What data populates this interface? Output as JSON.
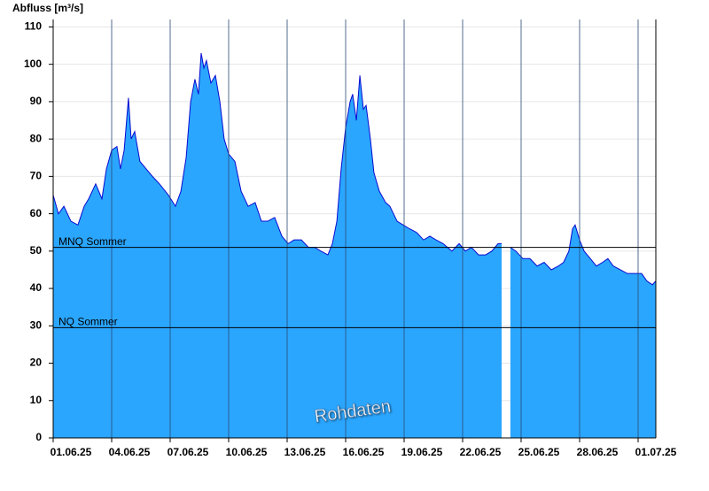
{
  "chart_data": {
    "type": "area",
    "y_label": "Abfluss [m³/s]",
    "annotation": "Rohdaten",
    "color": "#2aa6ff",
    "line_color": "#0a0ad0",
    "grid": true,
    "xlim": [
      0,
      30.91
    ],
    "ylim": [
      0,
      112
    ],
    "xticks": [
      {
        "value": 0,
        "label": "01.06.25"
      },
      {
        "value": 3,
        "label": "04.06.25"
      },
      {
        "value": 6,
        "label": "07.06.25"
      },
      {
        "value": 9,
        "label": "10.06.25"
      },
      {
        "value": 12,
        "label": "13.06.25"
      },
      {
        "value": 15,
        "label": "16.06.25"
      },
      {
        "value": 18,
        "label": "19.06.25"
      },
      {
        "value": 21,
        "label": "22.06.25"
      },
      {
        "value": 24,
        "label": "25.06.25"
      },
      {
        "value": 27,
        "label": "28.06.25"
      },
      {
        "value": 30,
        "label": "01.07.25"
      }
    ],
    "yticks": [
      0,
      10,
      20,
      30,
      40,
      50,
      60,
      70,
      80,
      90,
      100,
      110
    ],
    "reference_lines": [
      {
        "label": "MNQ Sommer",
        "value": 51
      },
      {
        "label": "NQ Sommer",
        "value": 29.5
      }
    ],
    "x": [
      0,
      0.27,
      0.55,
      0.91,
      1.27,
      1.59,
      1.82,
      2.18,
      2.5,
      2.73,
      3,
      3.27,
      3.45,
      3.64,
      3.86,
      4,
      4.18,
      4.45,
      4.77,
      5.09,
      5.45,
      5.91,
      6.27,
      6.55,
      6.82,
      7.05,
      7.27,
      7.45,
      7.59,
      7.73,
      7.86,
      8.09,
      8.32,
      8.55,
      8.77,
      9,
      9.32,
      9.64,
      10,
      10.36,
      10.68,
      11,
      11.36,
      11.73,
      12.05,
      12.36,
      12.73,
      13.09,
      13.41,
      13.73,
      14.09,
      14.32,
      14.55,
      14.77,
      15,
      15.23,
      15.36,
      15.55,
      15.73,
      15.91,
      16.05,
      16.27,
      16.45,
      16.73,
      17.05,
      17.27,
      17.64,
      17.95,
      18.27,
      18.64,
      19,
      19.32,
      19.64,
      20,
      20.45,
      20.82,
      21.14,
      21.45,
      21.82,
      22.18,
      22.5,
      22.82,
      23,
      23.2,
      23.45,
      23.73,
      24.09,
      24.45,
      24.82,
      25.18,
      25.55,
      25.91,
      26.18,
      26.45,
      26.64,
      26.77,
      27,
      27.23,
      27.55,
      27.86,
      28.18,
      28.45,
      28.73,
      29.09,
      29.45,
      29.82,
      30.18,
      30.45,
      30.73,
      30.91
    ],
    "values": [
      65,
      60,
      62,
      58,
      57,
      62,
      64,
      68,
      64,
      72,
      77,
      78,
      72,
      77,
      91,
      80,
      82,
      74,
      72,
      70,
      68,
      65,
      62,
      66,
      75,
      90,
      96,
      92,
      103,
      99,
      101,
      95,
      97,
      90,
      80,
      76,
      74,
      66,
      62,
      63,
      58,
      58,
      59,
      54,
      52,
      53,
      53,
      51,
      51,
      50,
      49,
      52,
      58,
      72,
      83,
      90,
      92,
      85,
      97,
      88,
      89,
      80,
      71,
      66,
      63,
      62,
      58,
      57,
      56,
      55,
      53,
      54,
      53,
      52,
      50,
      52,
      50,
      51,
      49,
      49,
      50,
      52,
      52,
      null,
      51,
      50,
      48,
      48,
      46,
      47,
      45,
      46,
      47,
      50,
      56,
      57,
      53,
      50,
      48,
      46,
      47,
      48,
      46,
      45,
      44,
      44,
      44,
      42,
      41,
      42
    ]
  }
}
